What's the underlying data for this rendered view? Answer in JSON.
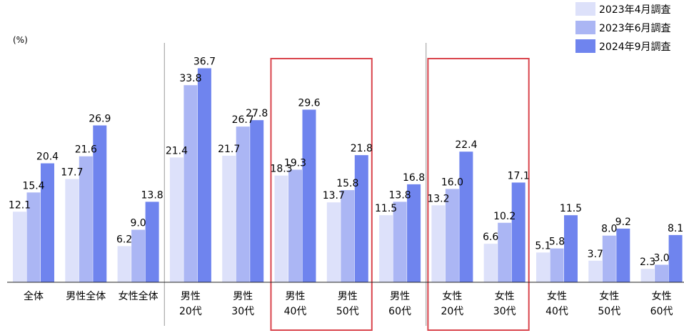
{
  "chart_data": {
    "type": "bar",
    "unit_label": "(%)",
    "categories": [
      [
        "全体"
      ],
      [
        "男性全体"
      ],
      [
        "女性全体"
      ],
      [
        "男性",
        "20代"
      ],
      [
        "男性",
        "30代"
      ],
      [
        "男性",
        "40代"
      ],
      [
        "男性",
        "50代"
      ],
      [
        "男性",
        "60代"
      ],
      [
        "女性",
        "20代"
      ],
      [
        "女性",
        "30代"
      ],
      [
        "女性",
        "40代"
      ],
      [
        "女性",
        "50代"
      ],
      [
        "女性",
        "60代"
      ]
    ],
    "series": [
      {
        "name": "2023年4月調査",
        "color": "#dde1fa",
        "values": [
          12.1,
          17.7,
          6.2,
          21.4,
          21.7,
          18.3,
          13.7,
          11.5,
          13.2,
          6.6,
          5.1,
          3.7,
          2.3
        ]
      },
      {
        "name": "2023年6月調査",
        "color": "#abb6f4",
        "values": [
          15.4,
          21.6,
          9.0,
          33.8,
          26.7,
          19.3,
          15.8,
          13.8,
          16.0,
          10.2,
          5.8,
          8.0,
          3.0
        ]
      },
      {
        "name": "2024年9月調査",
        "color": "#6f84ee",
        "values": [
          20.4,
          26.9,
          13.8,
          36.7,
          27.8,
          29.6,
          21.8,
          16.8,
          22.4,
          17.1,
          11.5,
          9.2,
          8.1
        ]
      }
    ],
    "ylim": [
      0,
      40
    ],
    "legend_position": "top-right",
    "highlighted_categories": [
      5,
      6,
      8,
      9
    ],
    "highlight_color": "#d9444c",
    "separators_before_categories": [
      3,
      8
    ]
  }
}
